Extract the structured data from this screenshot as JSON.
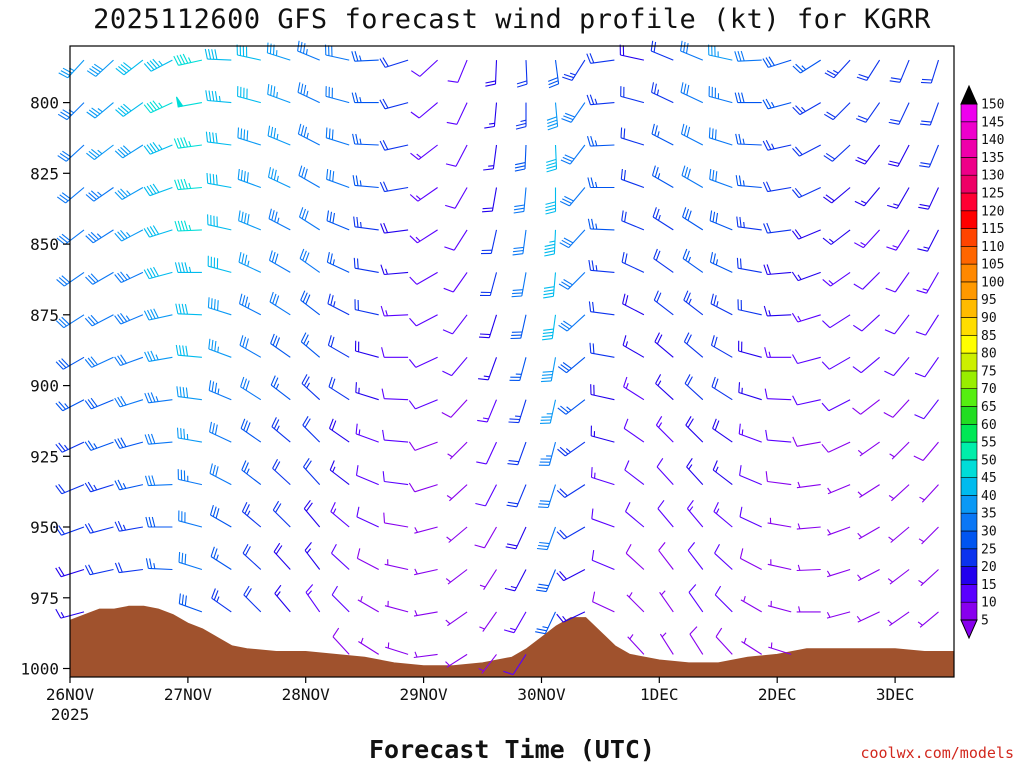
{
  "chart_data": {
    "type": "wind-barb-time-height",
    "title": "2025112600 GFS forecast wind profile (kt) for KGRR",
    "xlabel": "Forecast Time (UTC)",
    "ylabel": "",
    "credit": "coolwx.com/models",
    "x_ticks": [
      "26NOV",
      "27NOV",
      "28NOV",
      "29NOV",
      "30NOV",
      "1DEC",
      "2DEC",
      "3DEC"
    ],
    "x_tick_sub": "2025",
    "x_range_hours": [
      0,
      180
    ],
    "y_ticks": [
      800,
      825,
      850,
      875,
      900,
      925,
      950,
      975,
      1000
    ],
    "y_range_mb": [
      780,
      1003
    ],
    "colorbar": {
      "levels": [
        5,
        10,
        15,
        20,
        25,
        30,
        35,
        40,
        45,
        50,
        55,
        60,
        65,
        70,
        75,
        80,
        85,
        90,
        95,
        100,
        105,
        110,
        115,
        120,
        125,
        130,
        135,
        140,
        145,
        150
      ],
      "colors": [
        "#8800ee",
        "#5a00ff",
        "#2200ee",
        "#0b33ee",
        "#0055f0",
        "#0a77f5",
        "#0a99f5",
        "#00bbee",
        "#00ddd8",
        "#00eeaa",
        "#00e855",
        "#22dd22",
        "#55ee11",
        "#99ee00",
        "#ccf000",
        "#ffff00",
        "#ffdd00",
        "#ffbb00",
        "#ff9900",
        "#ff8800",
        "#ff6600",
        "#ff4400",
        "#ff0000",
        "#ff0033",
        "#ee0066",
        "#ee0088",
        "#ee00aa",
        "#ee00cc",
        "#ee00ee"
      ]
    },
    "time_step_hours": 6,
    "levels_mb": [
      785,
      800,
      815,
      830,
      845,
      860,
      875,
      890,
      905,
      920,
      935,
      950,
      965,
      980,
      995
    ],
    "terrain_surface_pressure_mb": [
      [
        0,
        983
      ],
      [
        3,
        981
      ],
      [
        6,
        979
      ],
      [
        9,
        979
      ],
      [
        12,
        978
      ],
      [
        15,
        978
      ],
      [
        18,
        979
      ],
      [
        21,
        981
      ],
      [
        24,
        984
      ],
      [
        27,
        986
      ],
      [
        30,
        989
      ],
      [
        33,
        992
      ],
      [
        36,
        993
      ],
      [
        42,
        994
      ],
      [
        48,
        994
      ],
      [
        54,
        995
      ],
      [
        60,
        996
      ],
      [
        66,
        998
      ],
      [
        72,
        999
      ],
      [
        78,
        999
      ],
      [
        84,
        998
      ],
      [
        90,
        996
      ],
      [
        93,
        993
      ],
      [
        96,
        989
      ],
      [
        99,
        985
      ],
      [
        102,
        982
      ],
      [
        105,
        982
      ],
      [
        108,
        987
      ],
      [
        111,
        992
      ],
      [
        114,
        995
      ],
      [
        120,
        997
      ],
      [
        126,
        998
      ],
      [
        132,
        998
      ],
      [
        138,
        996
      ],
      [
        144,
        995
      ],
      [
        150,
        993
      ],
      [
        156,
        993
      ],
      [
        162,
        993
      ],
      [
        168,
        993
      ],
      [
        174,
        994
      ],
      [
        180,
        994
      ]
    ],
    "wind_speed_kt_by_level": [
      [
        35,
        38,
        40,
        44,
        47,
        42,
        40,
        36,
        33,
        30,
        25,
        20,
        12,
        10,
        18,
        22,
        28,
        24,
        20,
        18,
        22,
        30,
        35,
        30,
        28,
        26,
        24,
        22,
        20,
        20,
        28
      ],
      [
        33,
        36,
        40,
        45,
        48,
        44,
        40,
        36,
        34,
        30,
        26,
        20,
        12,
        10,
        16,
        24,
        38,
        30,
        24,
        20,
        24,
        30,
        34,
        28,
        26,
        24,
        22,
        20,
        20,
        20,
        26
      ],
      [
        32,
        35,
        38,
        44,
        47,
        42,
        38,
        36,
        33,
        30,
        26,
        20,
        14,
        10,
        16,
        28,
        40,
        32,
        26,
        22,
        26,
        30,
        32,
        26,
        24,
        22,
        20,
        18,
        18,
        20,
        24
      ],
      [
        32,
        34,
        36,
        42,
        46,
        42,
        38,
        36,
        32,
        30,
        26,
        20,
        14,
        10,
        18,
        30,
        42,
        32,
        26,
        22,
        26,
        30,
        30,
        26,
        22,
        20,
        18,
        16,
        16,
        18,
        22
      ],
      [
        32,
        34,
        36,
        42,
        45,
        42,
        38,
        34,
        32,
        28,
        24,
        18,
        14,
        10,
        20,
        32,
        44,
        32,
        26,
        20,
        24,
        28,
        28,
        24,
        20,
        18,
        16,
        14,
        14,
        16,
        20
      ],
      [
        30,
        32,
        34,
        40,
        44,
        40,
        36,
        32,
        30,
        26,
        22,
        16,
        12,
        10,
        20,
        30,
        42,
        30,
        24,
        20,
        22,
        26,
        26,
        22,
        18,
        16,
        14,
        12,
        12,
        14,
        18
      ],
      [
        30,
        32,
        34,
        38,
        42,
        38,
        34,
        30,
        28,
        24,
        20,
        14,
        12,
        10,
        18,
        28,
        40,
        30,
        22,
        18,
        20,
        24,
        24,
        20,
        16,
        14,
        12,
        10,
        10,
        12,
        16
      ],
      [
        28,
        30,
        32,
        36,
        40,
        36,
        32,
        28,
        26,
        22,
        18,
        12,
        10,
        10,
        16,
        26,
        38,
        28,
        20,
        16,
        18,
        22,
        22,
        18,
        14,
        12,
        10,
        10,
        10,
        10,
        14
      ],
      [
        26,
        28,
        30,
        34,
        38,
        34,
        30,
        26,
        24,
        20,
        16,
        12,
        10,
        8,
        14,
        24,
        36,
        26,
        18,
        14,
        16,
        20,
        20,
        16,
        12,
        10,
        10,
        8,
        8,
        10,
        12
      ],
      [
        24,
        26,
        28,
        32,
        36,
        32,
        28,
        24,
        22,
        18,
        14,
        10,
        8,
        6,
        12,
        22,
        34,
        24,
        16,
        12,
        14,
        18,
        18,
        14,
        10,
        8,
        8,
        6,
        6,
        8,
        10
      ],
      [
        22,
        24,
        26,
        30,
        34,
        30,
        26,
        22,
        20,
        16,
        12,
        10,
        8,
        6,
        10,
        20,
        32,
        22,
        14,
        10,
        12,
        16,
        16,
        12,
        8,
        6,
        6,
        6,
        6,
        6,
        10
      ],
      [
        20,
        22,
        24,
        28,
        32,
        28,
        24,
        20,
        18,
        14,
        10,
        8,
        6,
        5,
        8,
        18,
        30,
        20,
        12,
        10,
        10,
        14,
        14,
        10,
        6,
        6,
        6,
        6,
        6,
        6,
        8
      ],
      [
        18,
        20,
        22,
        26,
        30,
        26,
        22,
        18,
        16,
        12,
        8,
        6,
        5,
        5,
        6,
        16,
        28,
        18,
        10,
        8,
        8,
        12,
        12,
        8,
        6,
        5,
        5,
        5,
        5,
        5,
        6
      ],
      [
        16,
        18,
        20,
        24,
        28,
        24,
        20,
        16,
        14,
        10,
        6,
        5,
        5,
        5,
        5,
        14,
        26,
        16,
        8,
        6,
        6,
        10,
        10,
        6,
        5,
        5,
        5,
        5,
        5,
        5,
        5
      ],
      [
        14,
        16,
        18,
        22,
        26,
        22,
        18,
        14,
        12,
        8,
        5,
        5,
        5,
        5,
        5,
        12,
        24,
        14,
        6,
        5,
        5,
        8,
        8,
        5,
        5,
        5,
        5,
        5,
        5,
        5,
        5
      ]
    ],
    "wind_dir_deg_by_time": [
      240,
      245,
      250,
      260,
      275,
      290,
      300,
      305,
      310,
      300,
      285,
      270,
      245,
      220,
      200,
      195,
      190,
      230,
      280,
      300,
      310,
      310,
      300,
      285,
      270,
      255,
      240,
      230,
      220,
      215,
      220
    ]
  }
}
